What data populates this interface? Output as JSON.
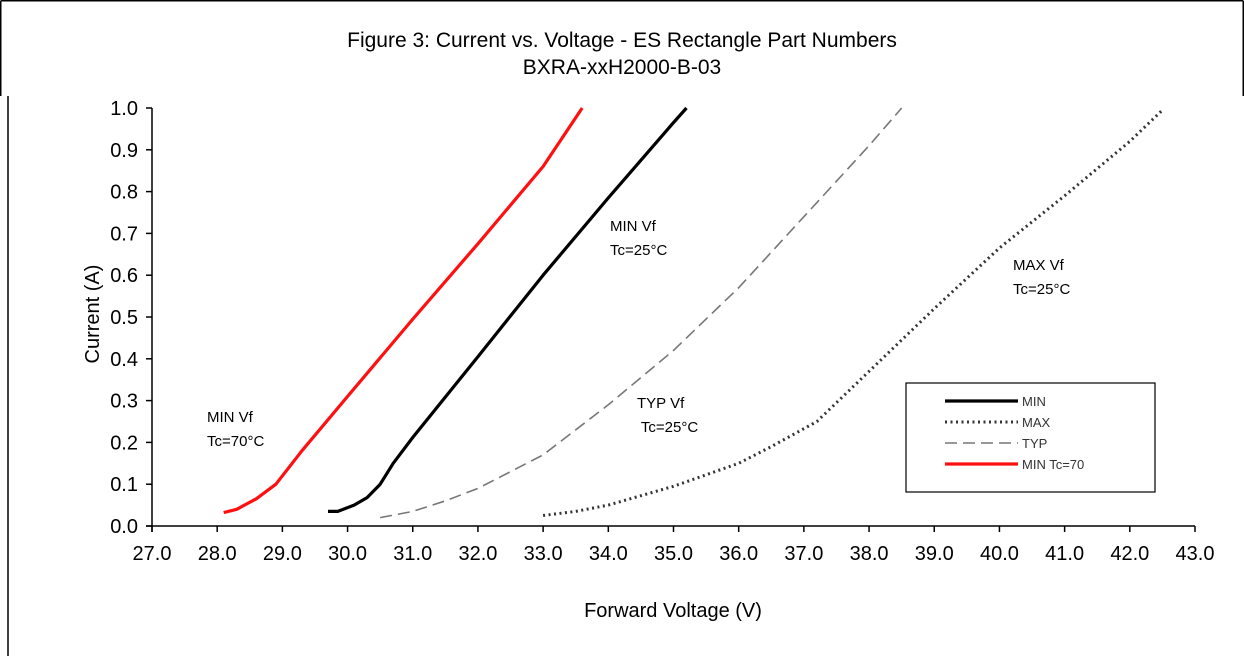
{
  "chart_data": {
    "type": "line",
    "title": "Figure 3:  Current vs. Voltage - ES Rectangle Part Numbers",
    "subtitle": "BXRA-xxH2000-B-03",
    "xlabel": "Forward  Voltage (V)",
    "ylabel": "Current  (A)",
    "xlim": [
      27.0,
      43.0
    ],
    "ylim": [
      0.0,
      1.0
    ],
    "xticks": [
      "27.0",
      "28.0",
      "29.0",
      "30.0",
      "31.0",
      "32.0",
      "33.0",
      "34.0",
      "35.0",
      "36.0",
      "37.0",
      "38.0",
      "39.0",
      "40.0",
      "41.0",
      "42.0",
      "43.0"
    ],
    "yticks": [
      "0.0",
      "0.1",
      "0.2",
      "0.3",
      "0.4",
      "0.5",
      "0.6",
      "0.7",
      "0.8",
      "0.9",
      "1.0"
    ],
    "grid": false,
    "legend_position": "bottom-right",
    "series": [
      {
        "name": "MIN",
        "style": "solid",
        "color": "#000000",
        "points": [
          [
            29.7,
            0.035
          ],
          [
            29.85,
            0.035
          ],
          [
            30.1,
            0.05
          ],
          [
            30.3,
            0.068
          ],
          [
            30.5,
            0.1
          ],
          [
            30.7,
            0.15
          ],
          [
            31.0,
            0.212
          ],
          [
            32.0,
            0.405
          ],
          [
            33.0,
            0.6
          ],
          [
            34.0,
            0.785
          ],
          [
            35.0,
            0.965
          ],
          [
            35.2,
            1.0
          ]
        ]
      },
      {
        "name": "MAX",
        "style": "dotted",
        "color": "#333333",
        "points": [
          [
            33.0,
            0.025
          ],
          [
            33.5,
            0.035
          ],
          [
            34.0,
            0.05
          ],
          [
            35.0,
            0.095
          ],
          [
            36.0,
            0.15
          ],
          [
            36.5,
            0.19
          ],
          [
            37.2,
            0.25
          ],
          [
            38.0,
            0.37
          ],
          [
            39.0,
            0.52
          ],
          [
            40.0,
            0.665
          ],
          [
            41.0,
            0.79
          ],
          [
            42.0,
            0.92
          ],
          [
            42.5,
            0.995
          ]
        ]
      },
      {
        "name": "TYP",
        "style": "dashed",
        "color": "#777777",
        "points": [
          [
            30.5,
            0.02
          ],
          [
            31.0,
            0.035
          ],
          [
            31.5,
            0.06
          ],
          [
            32.0,
            0.09
          ],
          [
            33.0,
            0.17
          ],
          [
            34.0,
            0.29
          ],
          [
            35.0,
            0.42
          ],
          [
            36.0,
            0.57
          ],
          [
            37.0,
            0.74
          ],
          [
            38.0,
            0.91
          ],
          [
            38.5,
            1.0
          ]
        ]
      },
      {
        "name": "MIN Tc=70",
        "style": "solid",
        "color": "#ff1010",
        "points": [
          [
            28.1,
            0.032
          ],
          [
            28.3,
            0.04
          ],
          [
            28.6,
            0.065
          ],
          [
            28.9,
            0.1
          ],
          [
            29.3,
            0.18
          ],
          [
            30.0,
            0.31
          ],
          [
            31.0,
            0.495
          ],
          [
            32.0,
            0.675
          ],
          [
            33.0,
            0.86
          ],
          [
            33.6,
            1.0
          ]
        ]
      }
    ],
    "annotations": [
      {
        "lines": [
          "MIN Vf",
          "Tc=70°C"
        ]
      },
      {
        "lines": [
          "MIN Vf",
          "Tc=25°C"
        ]
      },
      {
        "lines": [
          "TYP Vf",
          " Tc=25°C"
        ]
      },
      {
        "lines": [
          "MAX Vf",
          "Tc=25°C"
        ]
      }
    ]
  }
}
